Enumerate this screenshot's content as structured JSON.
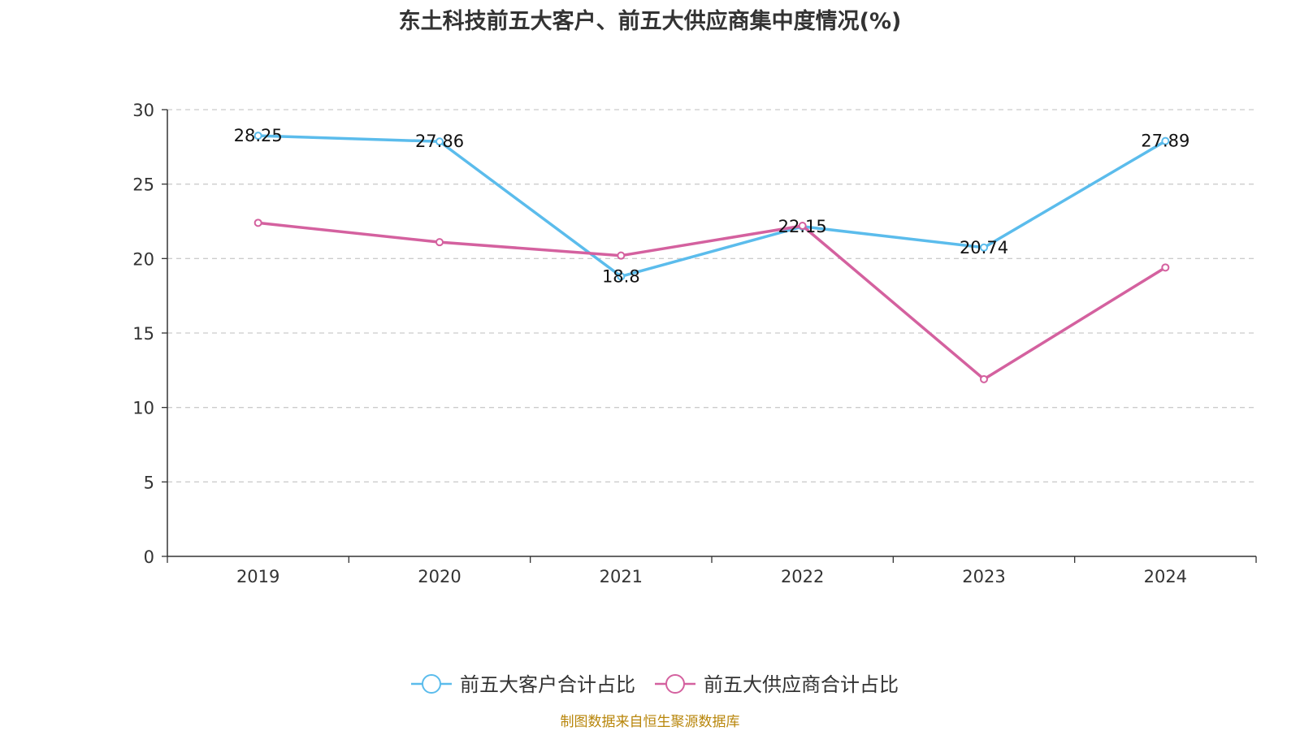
{
  "chart_data": {
    "type": "line",
    "title": "东土科技前五大客户、前五大供应商集中度情况(%)",
    "categories": [
      "2019",
      "2020",
      "2021",
      "2022",
      "2023",
      "2024"
    ],
    "ylim": [
      0,
      30
    ],
    "yticks": [
      0,
      5,
      10,
      15,
      20,
      25,
      30
    ],
    "grid": true,
    "legend_position": "bottom",
    "series": [
      {
        "name": "前五大客户合计占比",
        "color": "#5bbcec",
        "values": [
          28.25,
          27.86,
          18.8,
          22.15,
          20.74,
          27.89
        ],
        "labels": [
          "28.25",
          "27.86",
          "18.8",
          "22.15",
          "20.74",
          "27.89"
        ]
      },
      {
        "name": "前五大供应商合计占比",
        "color": "#d4619f",
        "values": [
          22.4,
          21.1,
          20.2,
          22.2,
          11.9,
          19.4
        ]
      }
    ]
  },
  "source": "制图数据来自恒生聚源数据库"
}
